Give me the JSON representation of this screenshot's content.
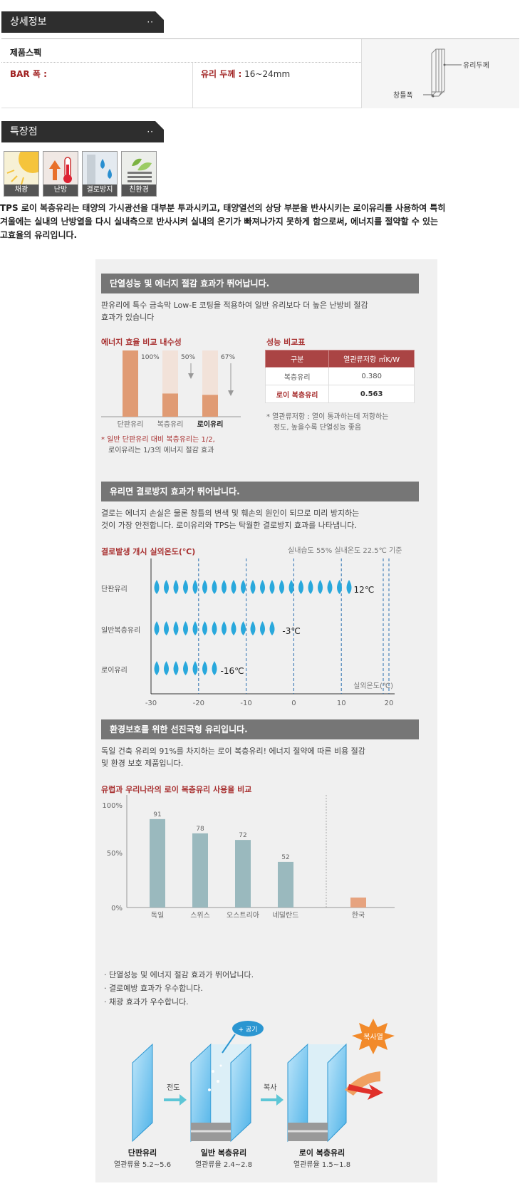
{
  "detail_tab": {
    "label": "상세정보",
    "dots": "··"
  },
  "spec": {
    "title": "제품스펙",
    "bar_label": "BAR 폭 :",
    "glass_label": "유리 두께 :",
    "glass_value": "16~24mm",
    "diagram_glass": "유리두께",
    "diagram_frame": "창틀폭"
  },
  "feature_tab": {
    "label": "특장점",
    "dots": "··"
  },
  "feature_icons": [
    {
      "label": "채광",
      "icon": "sun-icon"
    },
    {
      "label": "난방",
      "icon": "thermometer-icon"
    },
    {
      "label": "결로방지",
      "icon": "water-drop-icon"
    },
    {
      "label": "친환경",
      "icon": "leaf-icon"
    }
  ],
  "intro_lines": [
    "TPS 로이 복층유리는 태양의 가시광선을 대부분 투과시키고, 태양열선의 상당 부분을 반사시키는 로이유리를 사용하여 특히",
    "겨울에는 실내의 난방열을 다시 실내측으로 반사시켜 실내의 온기가 빠져나가지 못하게 함으로써, 에너지를 절약할 수 있는",
    "고효율의 유리입니다."
  ],
  "section1": {
    "heading": "단열성능 및 에너지 절감 효과가 뛰어납니다.",
    "text_lines": [
      "판유리에 특수 금속막 Low-E 코팅을 적용하여 일반 유리보다 더 높은 난방비 절감",
      "효과가 있습니다"
    ],
    "chart_title": "에너지 효율 비교 내수성",
    "table_title": "성능 비교표",
    "table_headers": [
      "구분",
      "열관류저항 ㎡K/W"
    ],
    "table_rows": [
      [
        "복층유리",
        "0.380"
      ],
      [
        "로이 복층유리",
        "0.563"
      ]
    ],
    "table_note": [
      "* 열관류저항 : 열이 통과하는데 저항하는",
      "정도, 높을수록 단열성능 좋음"
    ],
    "chart_note": [
      "* 일반 단판유리 대비 복층유리는 1/2,",
      "로이유리는 1/3의 에너지 절감 효과"
    ]
  },
  "section2": {
    "heading": "유리면 결로방지 효과가 뛰어납니다.",
    "text_lines": [
      "결로는 에너지 손실은 물론 창틀의 변색 및 훼손의 원인이 되므로 미리 방지하는",
      "것이 가장 안전합니다. 로이유리와 TPS는 탁월한 결로방지 효과를 나타냅니다."
    ],
    "chart_title": "결로발생 개시 실외온도(℃)",
    "condition": "실내습도 55% 실내온도 22.5℃ 기준",
    "axis_label": "실외온도(℃)"
  },
  "section3": {
    "heading": "환경보호를 위한 선진국형 유리입니다.",
    "text_lines": [
      "독일 건축 유리의 91%를 차지하는 로이 복층유리! 에너지 절약에 따른 비용 절감",
      "및 환경 보호 제품입니다."
    ],
    "chart_title": "유럽과 우리나라의 로이 복층유리 사용율 비교"
  },
  "bullets": [
    "· 단열성능 및 에너지 절감 효과가 뛰어납니다.",
    "· 결로예방 효과가 우수합니다.",
    "· 채광 효과가 우수합니다."
  ],
  "illustration": {
    "air_label": "+ 공기",
    "radiant_label": "복사열",
    "conduction": "전도",
    "radiation": "복사",
    "glasses": [
      {
        "name": "단판유리",
        "value": "열관류율 5.2~5.6"
      },
      {
        "name": "일반 복층유리",
        "value": "열관류율 2.4~2.8"
      },
      {
        "name": "로이 복층유리",
        "value": "열관류율 1.5~1.8"
      }
    ]
  },
  "chart_data": [
    {
      "type": "bar",
      "categories": [
        "단판유리",
        "복층유리",
        "로이유리"
      ],
      "values": [
        100,
        50,
        67
      ],
      "data_labels": [
        "100%",
        "50%",
        "67%"
      ],
      "ylim": [
        0,
        100
      ],
      "colors": {
        "bar": "#e09b74",
        "ghost": "#f2e2d9"
      }
    },
    {
      "type": "bar",
      "orientation": "horizontal",
      "categories": [
        "단판유리",
        "일반복층유리",
        "로이유리"
      ],
      "values": [
        12,
        -3,
        -16
      ],
      "data_labels": [
        "12℃",
        "-3℃",
        "-16℃"
      ],
      "xlim": [
        -30,
        20
      ],
      "xticks": [
        -30,
        -20,
        -10,
        0,
        10,
        20
      ],
      "xlabel": "실외온도(℃)",
      "colors": {
        "drop": "#29a8dc"
      }
    },
    {
      "type": "bar",
      "categories": [
        "독일",
        "스위스",
        "오스트리아",
        "네덜란드",
        "한국"
      ],
      "values": [
        91,
        78,
        72,
        52,
        8
      ],
      "data_labels": [
        "91",
        "78",
        "72",
        "52",
        ""
      ],
      "ylim": [
        0,
        100
      ],
      "yticks": [
        "0%",
        "50%",
        "100%"
      ],
      "colors": {
        "europe": "#9ab9be",
        "korea": "#e6a37f"
      }
    }
  ]
}
